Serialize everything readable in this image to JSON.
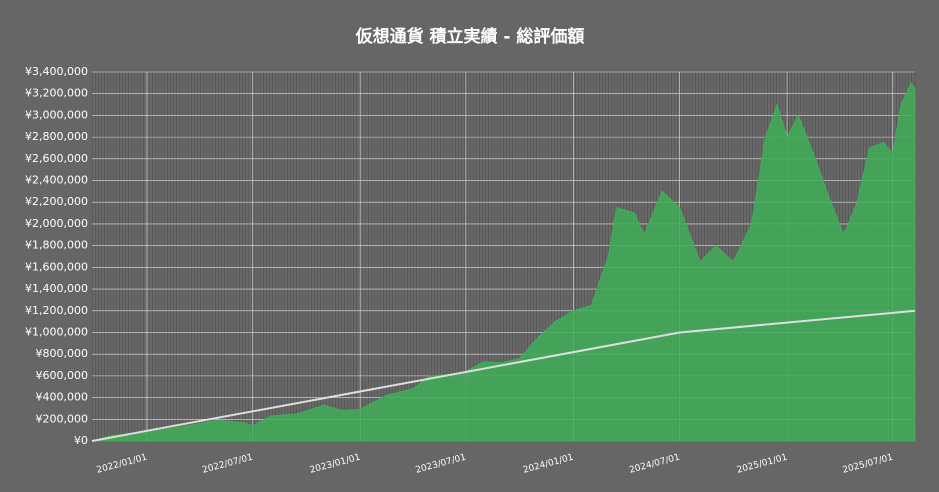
{
  "chart_data": {
    "type": "area",
    "title": "仮想通貨 積立実績 - 総評価額",
    "x": [
      "2021/09/29",
      "2021/11/01",
      "2022/01/01",
      "2022/03/01",
      "2022/05/01",
      "2022/06/15",
      "2022/07/01",
      "2022/08/01",
      "2022/09/15",
      "2022/11/01",
      "2022/12/01",
      "2023/01/01",
      "2023/02/15",
      "2023/04/01",
      "2023/05/01",
      "2023/06/15",
      "2023/07/01",
      "2023/08/01",
      "2023/09/01",
      "2023/10/01",
      "2023/11/01",
      "2023/12/01",
      "2024/01/01",
      "2024/02/01",
      "2024/03/01",
      "2024/03/15",
      "2024/04/15",
      "2024/05/01",
      "2024/06/01",
      "2024/07/01",
      "2024/08/05",
      "2024/09/01",
      "2024/10/01",
      "2024/11/01",
      "2024/11/25",
      "2024/12/15",
      "2025/01/01",
      "2025/01/20",
      "2025/02/15",
      "2025/03/10",
      "2025/04/08",
      "2025/05/01",
      "2025/05/22",
      "2025/06/15",
      "2025/07/01",
      "2025/07/15",
      "2025/08/01",
      "2025/08/08"
    ],
    "series": [
      {
        "color": "#3fae57",
        "values": [
          0,
          50000,
          80000,
          130000,
          190000,
          170000,
          140000,
          230000,
          250000,
          330000,
          280000,
          290000,
          420000,
          480000,
          600000,
          620000,
          640000,
          730000,
          720000,
          760000,
          950000,
          1100000,
          1200000,
          1250000,
          1700000,
          2150000,
          2100000,
          1900000,
          2300000,
          2150000,
          1650000,
          1800000,
          1650000,
          2000000,
          2800000,
          3100000,
          2800000,
          3000000,
          2650000,
          2300000,
          1900000,
          2200000,
          2700000,
          2750000,
          2650000,
          3100000,
          3300000,
          3250000
        ]
      },
      {
        "type": "line",
        "color": "#dddddd",
        "x": [
          "2021/09/29",
          "2024/07/01",
          "2025/08/08"
        ],
        "values": [
          0,
          1000000,
          1200000
        ]
      }
    ],
    "xlim": [
      "2021/09/29",
      "2025/08/08"
    ],
    "xticks": [
      "2022/01/01",
      "2022/07/01",
      "2023/01/01",
      "2023/07/01",
      "2024/01/01",
      "2024/07/01",
      "2025/01/01",
      "2025/07/01"
    ],
    "ylim": [
      0,
      3400000
    ],
    "yticks": [
      {
        "value": 0,
        "label": "¥0"
      },
      {
        "value": 200000,
        "label": "¥200,000"
      },
      {
        "value": 400000,
        "label": "¥400,000"
      },
      {
        "value": 600000,
        "label": "¥600,000"
      },
      {
        "value": 800000,
        "label": "¥800,000"
      },
      {
        "value": 1000000,
        "label": "¥1,000,000"
      },
      {
        "value": 1200000,
        "label": "¥1,200,000"
      },
      {
        "value": 1400000,
        "label": "¥1,400,000"
      },
      {
        "value": 1600000,
        "label": "¥1,600,000"
      },
      {
        "value": 1800000,
        "label": "¥1,800,000"
      },
      {
        "value": 2000000,
        "label": "¥2,000,000"
      },
      {
        "value": 2200000,
        "label": "¥2,200,000"
      },
      {
        "value": 2400000,
        "label": "¥2,400,000"
      },
      {
        "value": 2600000,
        "label": "¥2,600,000"
      },
      {
        "value": 2800000,
        "label": "¥2,800,000"
      },
      {
        "value": 3000000,
        "label": "¥3,000,000"
      },
      {
        "value": 3200000,
        "label": "¥3,200,000"
      },
      {
        "value": 3400000,
        "label": "¥3,400,000"
      }
    ],
    "grid": true
  }
}
